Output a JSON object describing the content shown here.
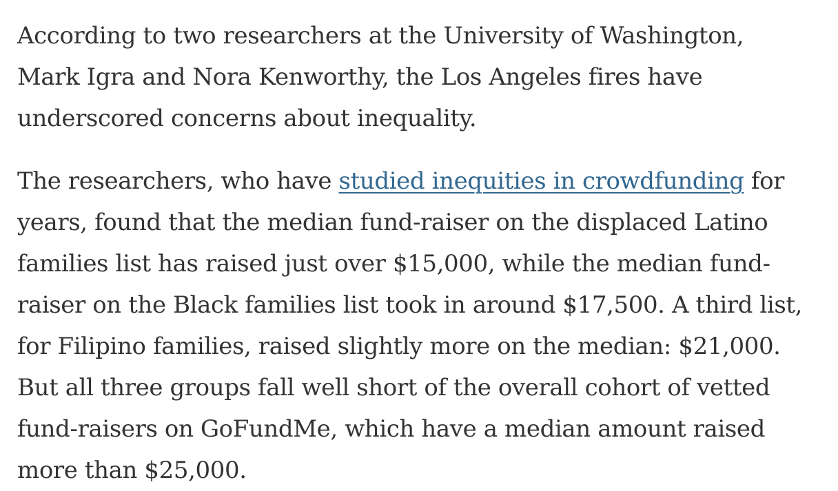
{
  "paragraphs": [
    {
      "lines": [
        "According to two researchers at the University of Washington,",
        "Mark Igra and Nora Kenworthy, the Los Angeles fires have",
        "underscored concerns about inequality."
      ]
    },
    {
      "line1_before_link": "The researchers, who have ",
      "link_text": "studied inequities in crowdfunding",
      "line1_after_link": " for",
      "lines": [
        "years, found that the median fund-raiser on the displaced Latino",
        "families list has raised just over $15,000, while the median fund-",
        "raiser on the Black families list took in around $17,500. A third list,",
        "for Filipino families, raised slightly more on the median: $21,000.",
        "But all three groups fall well short of the overall cohort of vetted",
        "fund-raisers on GoFundMe, which have a median amount raised",
        "more than $25,000."
      ]
    }
  ],
  "colors": {
    "text": "#333333",
    "link": "#326891",
    "background": "#ffffff"
  }
}
